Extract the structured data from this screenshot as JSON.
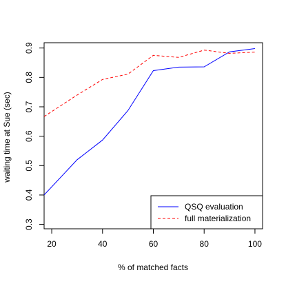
{
  "chart_data": {
    "type": "line",
    "xlabel": "% of matched facts",
    "ylabel": "waiting time at Sue (sec)",
    "xlim": [
      17,
      103
    ],
    "ylim": [
      0.285,
      0.918
    ],
    "x_ticks": [
      20,
      40,
      60,
      80,
      100
    ],
    "y_ticks": [
      0.3,
      0.4,
      0.5,
      0.6,
      0.7,
      0.8,
      0.9
    ],
    "grid": false,
    "legend_position": "bottom-right",
    "series": [
      {
        "name": "QSQ evaluation",
        "color": "#0000ff",
        "dash": "solid",
        "x": [
          17,
          30,
          40,
          50,
          60,
          70,
          80,
          90,
          100
        ],
        "y": [
          0.4,
          0.52,
          0.587,
          0.687,
          0.823,
          0.835,
          0.836,
          0.887,
          0.898
        ]
      },
      {
        "name": "full materialization",
        "color": "#ff0000",
        "dash": "dashed",
        "x": [
          17,
          30,
          40,
          50,
          60,
          70,
          80,
          90,
          100
        ],
        "y": [
          0.667,
          0.74,
          0.793,
          0.811,
          0.875,
          0.868,
          0.893,
          0.882,
          0.886
        ]
      }
    ]
  }
}
